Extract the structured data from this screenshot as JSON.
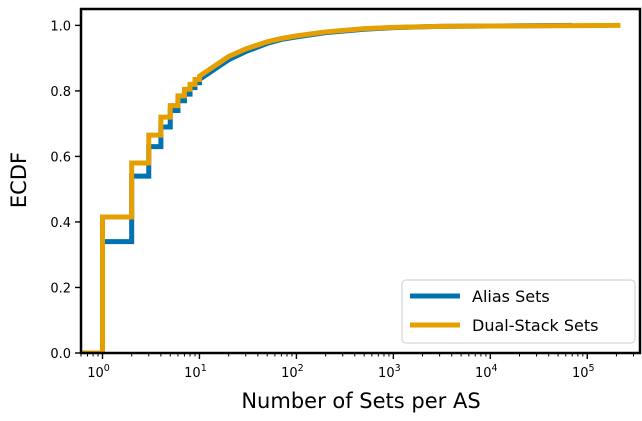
{
  "chart_data": {
    "type": "line",
    "subtype": "ecdf-step",
    "title": "",
    "xlabel": "Number of Sets per AS",
    "ylabel": "ECDF",
    "x_scale": "log",
    "xlim": [
      0.6,
      350000
    ],
    "ylim": [
      0.0,
      1.05
    ],
    "x_ticks": [
      {
        "value": 1,
        "base": "10",
        "exp": "0"
      },
      {
        "value": 10,
        "base": "10",
        "exp": "1"
      },
      {
        "value": 100,
        "base": "10",
        "exp": "2"
      },
      {
        "value": 1000,
        "base": "10",
        "exp": "3"
      },
      {
        "value": 10000,
        "base": "10",
        "exp": "4"
      },
      {
        "value": 100000,
        "base": "10",
        "exp": "5"
      }
    ],
    "y_ticks": [
      {
        "value": 0.0,
        "label": "0.0"
      },
      {
        "value": 0.2,
        "label": "0.2"
      },
      {
        "value": 0.4,
        "label": "0.4"
      },
      {
        "value": 0.6,
        "label": "0.6"
      },
      {
        "value": 0.8,
        "label": "0.8"
      },
      {
        "value": 1.0,
        "label": "1.0"
      }
    ],
    "grid": false,
    "legend_position": "lower-right",
    "series": [
      {
        "name": "Alias Sets",
        "color": "#0072b2",
        "points": [
          [
            0.6,
            0.0
          ],
          [
            1,
            0.0
          ],
          [
            1,
            0.34
          ],
          [
            2,
            0.34
          ],
          [
            2,
            0.54
          ],
          [
            3,
            0.54
          ],
          [
            3,
            0.63
          ],
          [
            4,
            0.63
          ],
          [
            4,
            0.69
          ],
          [
            5,
            0.69
          ],
          [
            5,
            0.74
          ],
          [
            6,
            0.74
          ],
          [
            6,
            0.77
          ],
          [
            7,
            0.77
          ],
          [
            7,
            0.79
          ],
          [
            8,
            0.79
          ],
          [
            8,
            0.81
          ],
          [
            9,
            0.81
          ],
          [
            9,
            0.825
          ],
          [
            10,
            0.825
          ],
          [
            10,
            0.835
          ],
          [
            15,
            0.87
          ],
          [
            20,
            0.895
          ],
          [
            30,
            0.92
          ],
          [
            50,
            0.945
          ],
          [
            70,
            0.957
          ],
          [
            100,
            0.965
          ],
          [
            200,
            0.978
          ],
          [
            500,
            0.988
          ],
          [
            1000,
            0.993
          ],
          [
            3000,
            0.997
          ],
          [
            10000,
            0.998
          ],
          [
            70000,
            1.0
          ]
        ]
      },
      {
        "name": "Dual-Stack Sets",
        "color": "#e69f00",
        "points": [
          [
            0.6,
            0.0
          ],
          [
            1,
            0.0
          ],
          [
            1,
            0.415
          ],
          [
            2,
            0.415
          ],
          [
            2,
            0.58
          ],
          [
            3,
            0.58
          ],
          [
            3,
            0.665
          ],
          [
            4,
            0.665
          ],
          [
            4,
            0.72
          ],
          [
            5,
            0.72
          ],
          [
            5,
            0.755
          ],
          [
            6,
            0.755
          ],
          [
            6,
            0.785
          ],
          [
            7,
            0.785
          ],
          [
            7,
            0.805
          ],
          [
            8,
            0.805
          ],
          [
            8,
            0.82
          ],
          [
            9,
            0.82
          ],
          [
            9,
            0.835
          ],
          [
            10,
            0.835
          ],
          [
            10,
            0.845
          ],
          [
            15,
            0.88
          ],
          [
            20,
            0.905
          ],
          [
            30,
            0.928
          ],
          [
            50,
            0.95
          ],
          [
            70,
            0.96
          ],
          [
            100,
            0.968
          ],
          [
            200,
            0.98
          ],
          [
            500,
            0.99
          ],
          [
            1000,
            0.994
          ],
          [
            3000,
            0.997
          ],
          [
            10000,
            0.998
          ],
          [
            220000,
            1.0
          ]
        ]
      }
    ]
  }
}
